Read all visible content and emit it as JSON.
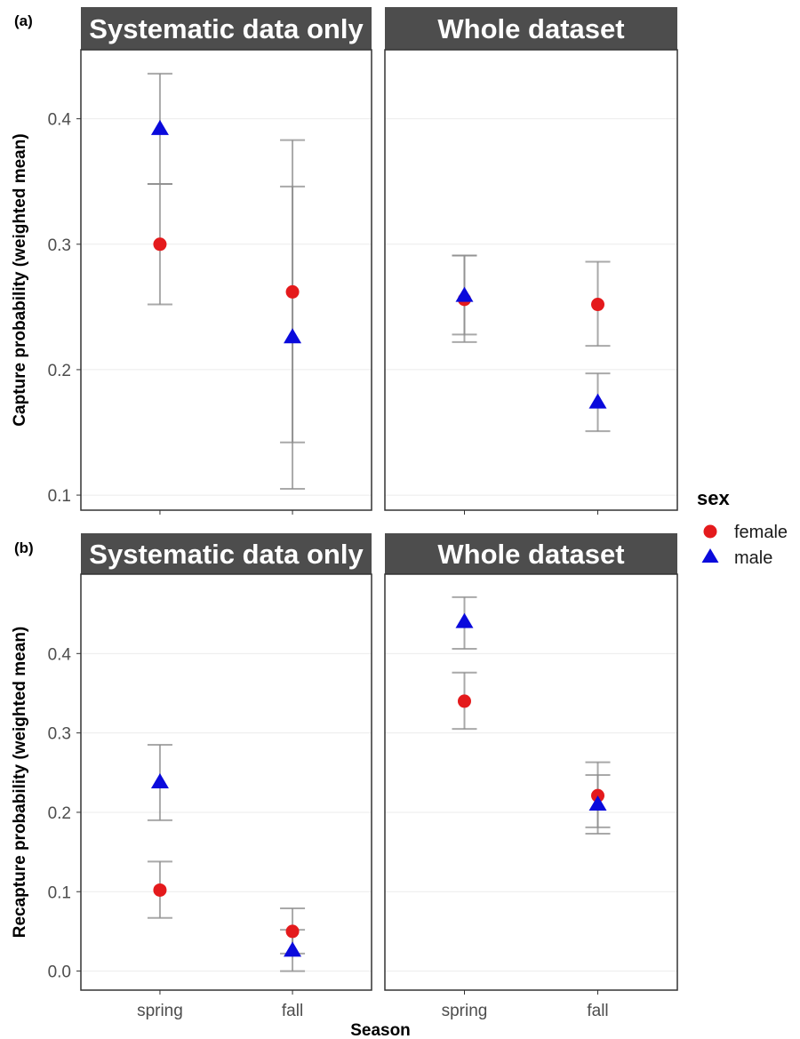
{
  "figure": {
    "panel_labels": [
      "(a)",
      "(b)"
    ],
    "facet_titles": [
      "Systematic data only",
      "Whole dataset"
    ],
    "xlabel": "Season",
    "legend": {
      "title": "sex",
      "items": [
        "female",
        "male"
      ]
    }
  },
  "colors": {
    "female": "#e41a1c",
    "male": "#0a0adc",
    "strip": "#4d4d4d",
    "errorbar": "#8c8c8c",
    "grid": "#ebebeb",
    "panel_border": "#333333"
  },
  "chart_data": [
    {
      "type": "scatter",
      "panel": "(a)",
      "ylabel": "Capture probability (weighted mean)",
      "ylim": [
        0.088,
        0.455
      ],
      "yticks": [
        0.1,
        0.2,
        0.3,
        0.4
      ],
      "ytick_labels": [
        "0.1",
        "0.2",
        "0.3",
        "0.4"
      ],
      "categories": [
        "spring",
        "fall"
      ],
      "grid": true,
      "legend_position": "right",
      "facets": [
        {
          "title": "Systematic data only",
          "series": [
            {
              "name": "female",
              "shape": "circle",
              "values": [
                0.3,
                0.262
              ],
              "lower": [
                0.252,
                0.142
              ],
              "upper": [
                0.348,
                0.383
              ]
            },
            {
              "name": "male",
              "shape": "triangle",
              "values": [
                0.392,
                0.226
              ],
              "lower": [
                0.348,
                0.105
              ],
              "upper": [
                0.436,
                0.346
              ]
            }
          ]
        },
        {
          "title": "Whole dataset",
          "series": [
            {
              "name": "female",
              "shape": "circle",
              "values": [
                0.256,
                0.252
              ],
              "lower": [
                0.222,
                0.219
              ],
              "upper": [
                0.291,
                0.286
              ]
            },
            {
              "name": "male",
              "shape": "triangle",
              "values": [
                0.259,
                0.174
              ],
              "lower": [
                0.228,
                0.151
              ],
              "upper": [
                0.291,
                0.197
              ]
            }
          ]
        }
      ]
    },
    {
      "type": "scatter",
      "panel": "(b)",
      "ylabel": "Recapture probability (weighted mean)",
      "ylim": [
        -0.024,
        0.5
      ],
      "yticks": [
        0.0,
        0.1,
        0.2,
        0.3,
        0.4
      ],
      "ytick_labels": [
        "0.0",
        "0.1",
        "0.2",
        "0.3",
        "0.4"
      ],
      "categories": [
        "spring",
        "fall"
      ],
      "grid": true,
      "legend_position": "right",
      "facets": [
        {
          "title": "Systematic data only",
          "series": [
            {
              "name": "female",
              "shape": "circle",
              "values": [
                0.102,
                0.05
              ],
              "lower": [
                0.067,
                0.022
              ],
              "upper": [
                0.138,
                0.079
              ]
            },
            {
              "name": "male",
              "shape": "triangle",
              "values": [
                0.238,
                0.026
              ],
              "lower": [
                0.19,
                0.0
              ],
              "upper": [
                0.285,
                0.052
              ]
            }
          ]
        },
        {
          "title": "Whole dataset",
          "series": [
            {
              "name": "female",
              "shape": "circle",
              "values": [
                0.34,
                0.221
              ],
              "lower": [
                0.305,
                0.181
              ],
              "upper": [
                0.376,
                0.263
              ]
            },
            {
              "name": "male",
              "shape": "triangle",
              "values": [
                0.44,
                0.21
              ],
              "lower": [
                0.406,
                0.173
              ],
              "upper": [
                0.471,
                0.247
              ]
            }
          ]
        }
      ]
    }
  ]
}
